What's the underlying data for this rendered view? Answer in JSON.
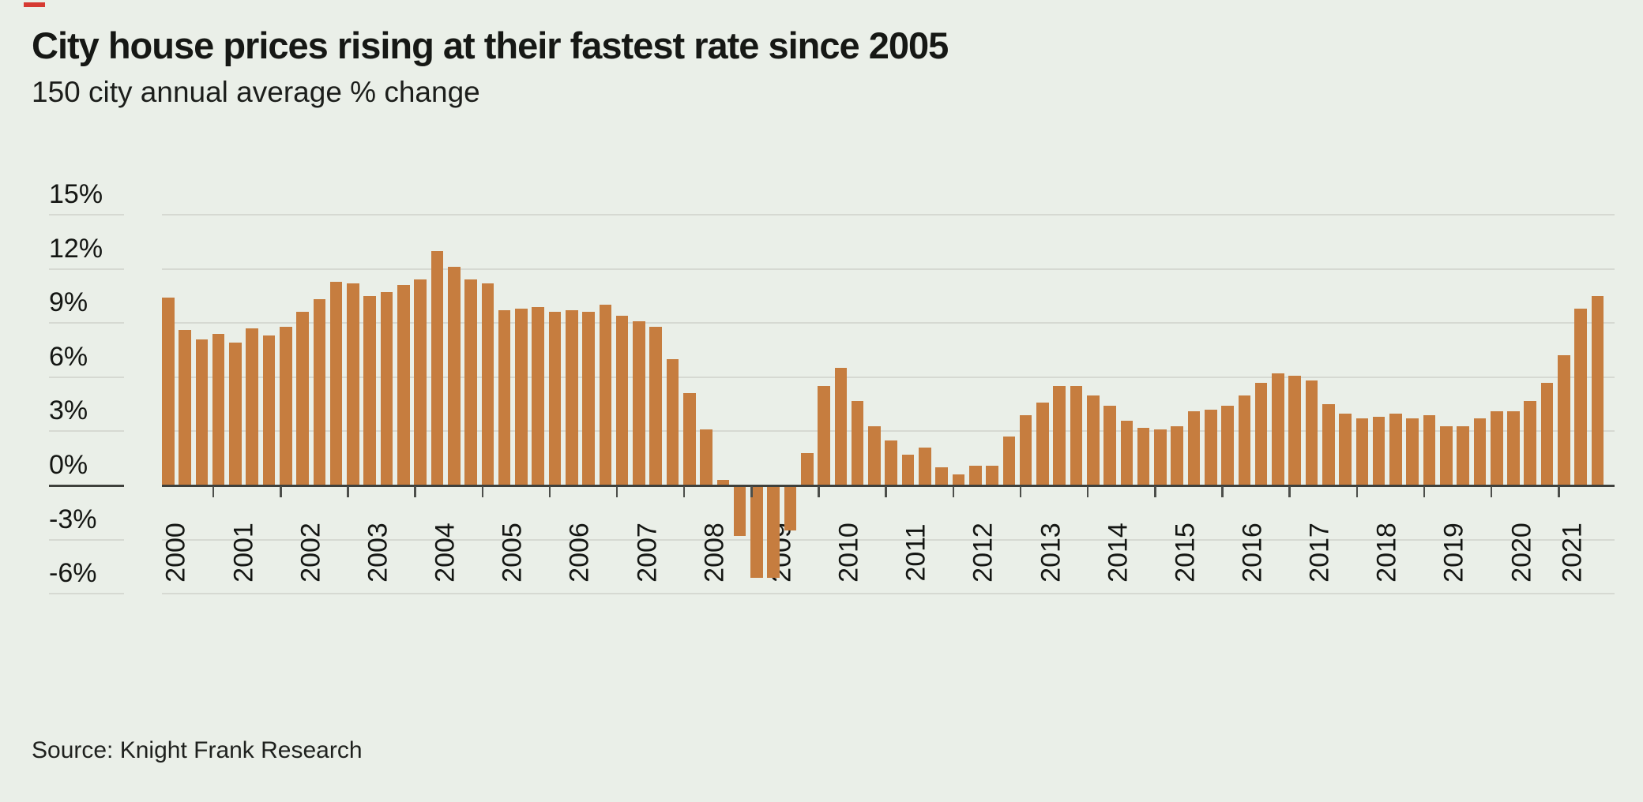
{
  "page": {
    "background_color": "#eaefe8",
    "brand_mark_color": "#d63a32"
  },
  "header": {
    "title": "City house prices rising at their fastest rate since 2005",
    "subtitle": "150 city annual average % change"
  },
  "footer": {
    "source": "Source: Knight Frank Research"
  },
  "chart_data": {
    "type": "bar",
    "title": "City house prices rising at their fastest rate since 2005",
    "subtitle": "150 city annual average % change",
    "unit": "%",
    "frequency": "quarterly",
    "ylim": [
      -6,
      15
    ],
    "y_ticks": [
      15,
      12,
      9,
      6,
      3,
      0,
      -3,
      -6
    ],
    "y_tick_labels": [
      "15%",
      "12%",
      "9%",
      "6%",
      "3%",
      "0%",
      "-3%",
      "-6%"
    ],
    "grid": "horizontal",
    "legend": "none",
    "bar_color": "#c67d3f",
    "categories": [
      "2000",
      "2001",
      "2002",
      "2003",
      "2004",
      "2005",
      "2006",
      "2007",
      "2008",
      "2009",
      "2010",
      "2011",
      "2012",
      "2013",
      "2014",
      "2015",
      "2016",
      "2017",
      "2018",
      "2019",
      "2020",
      "2021"
    ],
    "series": [
      {
        "name": "150 city annual average % change",
        "years": [
          {
            "year": "2000",
            "values": [
              10.4,
              8.6,
              8.1,
              8.4
            ]
          },
          {
            "year": "2001",
            "values": [
              7.9,
              8.7,
              8.3,
              8.8
            ]
          },
          {
            "year": "2002",
            "values": [
              9.6,
              10.3,
              11.3,
              11.2
            ]
          },
          {
            "year": "2003",
            "values": [
              10.5,
              10.7,
              11.1,
              11.4
            ]
          },
          {
            "year": "2004",
            "values": [
              13.0,
              12.1,
              11.4,
              11.2
            ]
          },
          {
            "year": "2005",
            "values": [
              9.7,
              9.8,
              9.9,
              9.6
            ]
          },
          {
            "year": "2006",
            "values": [
              9.7,
              9.6,
              10.0,
              9.4
            ]
          },
          {
            "year": "2007",
            "values": [
              9.1,
              8.8,
              7.0,
              5.1
            ]
          },
          {
            "year": "2008",
            "values": [
              3.1,
              0.3,
              -2.8,
              -5.1
            ]
          },
          {
            "year": "2009",
            "values": [
              -5.1,
              -2.5,
              1.8,
              5.5
            ]
          },
          {
            "year": "2010",
            "values": [
              6.5,
              4.7,
              3.3,
              2.5
            ]
          },
          {
            "year": "2011",
            "values": [
              1.7,
              2.1,
              1.0,
              0.6
            ]
          },
          {
            "year": "2012",
            "values": [
              1.1,
              1.1,
              2.7,
              3.9
            ]
          },
          {
            "year": "2013",
            "values": [
              4.6,
              5.5,
              5.5,
              5.0
            ]
          },
          {
            "year": "2014",
            "values": [
              4.4,
              3.6,
              3.2,
              3.1
            ]
          },
          {
            "year": "2015",
            "values": [
              3.3,
              4.1,
              4.2,
              4.4
            ]
          },
          {
            "year": "2016",
            "values": [
              5.0,
              5.7,
              6.2,
              6.1
            ]
          },
          {
            "year": "2017",
            "values": [
              5.8,
              4.5,
              4.0,
              3.7
            ]
          },
          {
            "year": "2018",
            "values": [
              3.8,
              4.0,
              3.7,
              3.9
            ]
          },
          {
            "year": "2019",
            "values": [
              3.3,
              3.3,
              3.7,
              4.1
            ]
          },
          {
            "year": "2020",
            "values": [
              4.1,
              4.7,
              5.7,
              7.2
            ]
          },
          {
            "year": "2021",
            "values": [
              9.8,
              10.5
            ]
          }
        ]
      }
    ]
  }
}
